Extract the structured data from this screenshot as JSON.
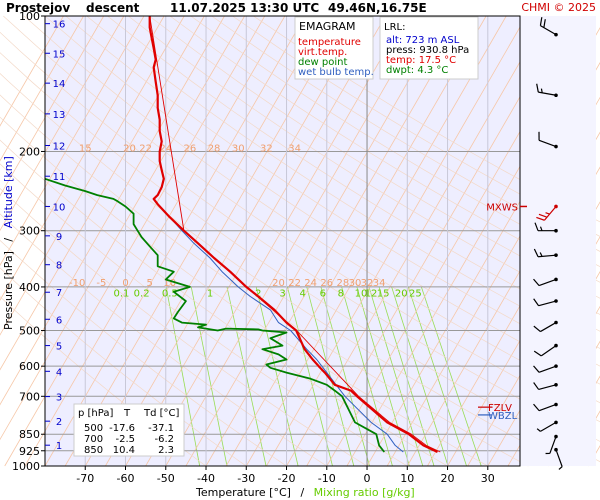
{
  "header": {
    "station": "Prostejov",
    "mode": "descent",
    "datetime": "11.07.2025 13:30 UTC",
    "coords": "49.46N,16.75E",
    "copyright": "CHMI © 2025"
  },
  "chart_data": {
    "type": "line",
    "title": "EMAGRAM",
    "xlabel": "Temperature [°C]",
    "xlabel_sep": "/",
    "xlabel2": "Mixing ratio [g/kg]",
    "ylabel": "Pressure [hPa]",
    "ylabel_sep": "/",
    "ylabel2": "Altitude [km]",
    "xlim": [
      -80,
      38
    ],
    "ylim": [
      1000,
      100
    ],
    "y_scale": "log",
    "x_ticks": [
      -70,
      -60,
      -50,
      -40,
      -30,
      -20,
      -10,
      0,
      10,
      20,
      30
    ],
    "p_ticks": [
      100,
      200,
      300,
      400,
      500,
      600,
      700,
      850,
      925,
      1000
    ],
    "alt_ticks": [
      {
        "km": "16",
        "p": 104
      },
      {
        "km": "15",
        "p": 121
      },
      {
        "km": "14",
        "p": 141
      },
      {
        "km": "13",
        "p": 165
      },
      {
        "km": "12",
        "p": 194
      },
      {
        "km": "11",
        "p": 227
      },
      {
        "km": "10",
        "p": 265
      },
      {
        "km": "9",
        "p": 308
      },
      {
        "km": "8",
        "p": 357
      },
      {
        "km": "7",
        "p": 411
      },
      {
        "km": "6",
        "p": 472
      },
      {
        "km": "5",
        "p": 540
      },
      {
        "km": "4",
        "p": 616
      },
      {
        "km": "3",
        "p": 701
      },
      {
        "km": "2",
        "p": 795
      },
      {
        "km": "1",
        "p": 899
      }
    ],
    "isotherm_labels_high": {
      "p": 200,
      "values": [
        "15",
        "20",
        "22",
        "24",
        "26",
        "28",
        "30",
        "32",
        "34"
      ]
    },
    "isotherm_labels_low": {
      "p": 400,
      "values": [
        "-10",
        "-5",
        "0",
        "5",
        "10",
        "20",
        "22",
        "24",
        "26",
        "28",
        "30",
        "32",
        "34"
      ]
    },
    "mixing_ratio_labels": [
      "0.1",
      "0.2",
      "0.5",
      "1",
      "2",
      "3",
      "4",
      "6",
      "8",
      "10",
      "12",
      "15",
      "20",
      "25"
    ],
    "legend": [
      {
        "label": "temperature",
        "color": "#e00000"
      },
      {
        "label": "virt.temp.",
        "color": "#e00000"
      },
      {
        "label": "dew point",
        "color": "#008000"
      },
      {
        "label": "wet bulb temp.",
        "color": "#3060c0"
      }
    ],
    "series": [
      {
        "name": "temperature",
        "color": "#e00000",
        "points": [
          [
            17.5,
            930.8
          ],
          [
            14,
            900
          ],
          [
            10.4,
            850
          ],
          [
            5,
            800
          ],
          [
            -2.5,
            700
          ],
          [
            -4,
            680
          ],
          [
            -8,
            660
          ],
          [
            -10.5,
            620
          ],
          [
            -12,
            600
          ],
          [
            -13.5,
            580
          ],
          [
            -15.5,
            550
          ],
          [
            -17.6,
            500
          ],
          [
            -20,
            480
          ],
          [
            -23,
            450
          ],
          [
            -27,
            420
          ],
          [
            -30,
            400
          ],
          [
            -34,
            370
          ],
          [
            -38,
            345
          ],
          [
            -42,
            320
          ],
          [
            -45.5,
            300
          ],
          [
            -49,
            280
          ],
          [
            -52,
            262
          ],
          [
            -53,
            255
          ],
          [
            -52,
            250
          ],
          [
            -51,
            240
          ],
          [
            -50.5,
            230
          ],
          [
            -51,
            220
          ],
          [
            -51.5,
            210
          ],
          [
            -51.5,
            200
          ],
          [
            -51,
            190
          ],
          [
            -51.5,
            180
          ],
          [
            -51.5,
            170
          ],
          [
            -52,
            160
          ],
          [
            -52,
            150
          ],
          [
            -52.5,
            140
          ],
          [
            -53,
            130
          ],
          [
            -52.5,
            125
          ],
          [
            -53,
            118
          ],
          [
            -53.5,
            112
          ],
          [
            -54,
            106
          ],
          [
            -54,
            100
          ]
        ]
      },
      {
        "name": "virt.temp.",
        "color": "#e00000",
        "points": [
          [
            18.2,
            930.8
          ],
          [
            14.7,
            900
          ],
          [
            11,
            850
          ],
          [
            5.6,
            800
          ],
          [
            -2.1,
            700
          ],
          [
            -17.5,
            500
          ],
          [
            -30,
            400
          ],
          [
            -45.5,
            300
          ],
          [
            -54,
            100
          ]
        ]
      },
      {
        "name": "dew point",
        "color": "#008000",
        "points": [
          [
            4.3,
            930.8
          ],
          [
            3,
            900
          ],
          [
            2.3,
            850
          ],
          [
            -3,
            800
          ],
          [
            -6.2,
            700
          ],
          [
            -8,
            680
          ],
          [
            -10,
            660
          ],
          [
            -14,
            640
          ],
          [
            -20,
            620
          ],
          [
            -24,
            605
          ],
          [
            -25,
            595
          ],
          [
            -20,
            580
          ],
          [
            -22,
            565
          ],
          [
            -26,
            550
          ],
          [
            -21,
            540
          ],
          [
            -24,
            520
          ],
          [
            -20,
            505
          ],
          [
            -26,
            500
          ],
          [
            -27,
            497
          ],
          [
            -35,
            495
          ],
          [
            -37.1,
            500
          ],
          [
            -42,
            492
          ],
          [
            -40,
            485
          ],
          [
            -46,
            480
          ],
          [
            -48,
            470
          ],
          [
            -47,
            455
          ],
          [
            -45,
            430
          ],
          [
            -48,
            410
          ],
          [
            -44,
            400
          ],
          [
            -50,
            385
          ],
          [
            -48,
            370
          ],
          [
            -52,
            360
          ],
          [
            -52,
            340
          ],
          [
            -54,
            325
          ],
          [
            -56,
            310
          ],
          [
            -57,
            300
          ],
          [
            -58,
            290
          ],
          [
            -58,
            275
          ],
          [
            -60,
            265
          ],
          [
            -62,
            258
          ],
          [
            -63,
            255
          ],
          [
            -67,
            250
          ],
          [
            -70,
            245
          ],
          [
            -75,
            238
          ],
          [
            -80,
            230
          ]
        ]
      },
      {
        "name": "wet bulb temp.",
        "color": "#3060c0",
        "points": [
          [
            9,
            930.8
          ],
          [
            7,
            900
          ],
          [
            5,
            850
          ],
          [
            1,
            800
          ],
          [
            -5.5,
            700
          ],
          [
            -10,
            620
          ],
          [
            -12.5,
            580
          ],
          [
            -15,
            550
          ],
          [
            -19,
            500
          ],
          [
            -22,
            480
          ],
          [
            -24,
            450
          ],
          [
            -29,
            420
          ],
          [
            -32,
            400
          ],
          [
            -36,
            370
          ],
          [
            -39,
            345
          ],
          [
            -43,
            320
          ],
          [
            -46,
            300
          ],
          [
            -49,
            280
          ],
          [
            -52,
            262
          ],
          [
            -53,
            255
          ],
          [
            -52,
            250
          ],
          [
            -51,
            240
          ],
          [
            -50.5,
            230
          ],
          [
            -51,
            220
          ],
          [
            -51.5,
            210
          ],
          [
            -51.5,
            200
          ],
          [
            -51,
            190
          ],
          [
            -51.5,
            180
          ],
          [
            -51.5,
            170
          ],
          [
            -52,
            160
          ],
          [
            -52,
            150
          ],
          [
            -52.5,
            140
          ],
          [
            -53,
            130
          ],
          [
            -52.5,
            125
          ],
          [
            -53,
            118
          ],
          [
            -53.5,
            112
          ],
          [
            -54,
            106
          ],
          [
            -54,
            100
          ]
        ]
      }
    ],
    "lrl": {
      "title": "LRL:",
      "alt": "alt: 723 m ASL",
      "press": "press: 930.8 hPa",
      "temp": "temp: 17.5 °C",
      "dwpt": "dwpt: 4.3 °C",
      "colors": {
        "alt": "#0000cc",
        "press": "#000000",
        "temp": "#e00000",
        "dwpt": "#008000"
      }
    },
    "markers": [
      {
        "label": "MXWS",
        "p": 265,
        "color": "#cc0000"
      },
      {
        "label": "FZLV",
        "p": 740,
        "color": "#cc0000"
      },
      {
        "label": "WBZL",
        "p": 770,
        "color": "#3060c0"
      }
    ],
    "table": {
      "headers": [
        "p [hPa]",
        "T",
        "Td [°C]"
      ],
      "rows": [
        [
          "500",
          "-17.6",
          "-37.1"
        ],
        [
          "700",
          "-2.5",
          "-6.2"
        ],
        [
          "850",
          "10.4",
          "2.3"
        ]
      ]
    },
    "wind_barbs": [
      {
        "p": 110,
        "dir": 300,
        "spd": 20
      },
      {
        "p": 150,
        "dir": 280,
        "spd": 15
      },
      {
        "p": 195,
        "dir": 290,
        "spd": 10
      },
      {
        "p": 265,
        "dir": 220,
        "spd": 25
      },
      {
        "p": 300,
        "dir": 270,
        "spd": 15
      },
      {
        "p": 340,
        "dir": 265,
        "spd": 15
      },
      {
        "p": 385,
        "dir": 250,
        "spd": 10
      },
      {
        "p": 430,
        "dir": 255,
        "spd": 10
      },
      {
        "p": 480,
        "dir": 240,
        "spd": 10
      },
      {
        "p": 540,
        "dir": 235,
        "spd": 10
      },
      {
        "p": 600,
        "dir": 250,
        "spd": 10
      },
      {
        "p": 660,
        "dir": 255,
        "spd": 10
      },
      {
        "p": 730,
        "dir": 250,
        "spd": 10
      },
      {
        "p": 800,
        "dir": 240,
        "spd": 5
      },
      {
        "p": 860,
        "dir": 200,
        "spd": 5
      },
      {
        "p": 920,
        "dir": 160,
        "spd": 5
      }
    ]
  }
}
